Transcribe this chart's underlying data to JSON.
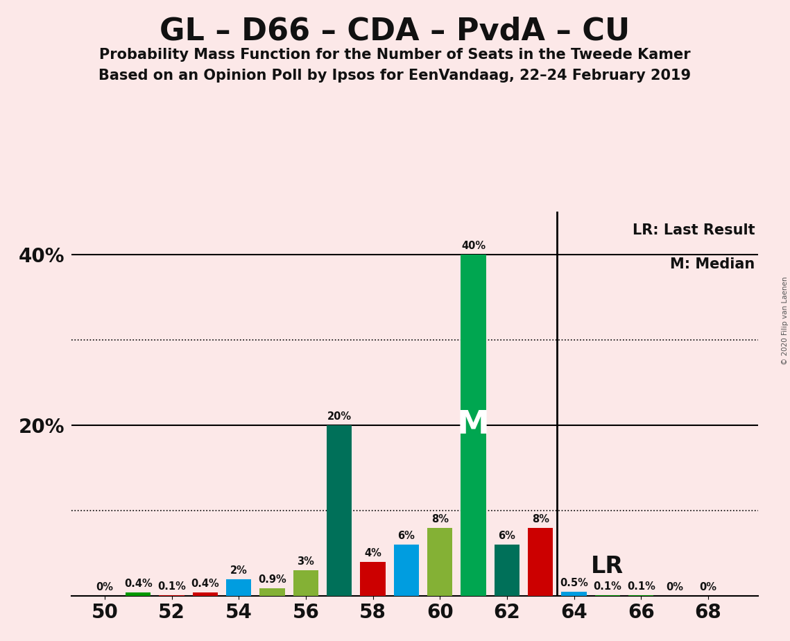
{
  "title": "GL – D66 – CDA – PvdA – CU",
  "subtitle1": "Probability Mass Function for the Number of Seats in the Tweede Kamer",
  "subtitle2": "Based on an Opinion Poll by Ipsos for EenVandaag, 22–24 February 2019",
  "copyright": "© 2020 Filip van Laenen",
  "background_color": "#fce8e8",
  "bars": [
    {
      "seat": 50,
      "value": 0.0,
      "color": "#008000",
      "label": "0%"
    },
    {
      "seat": 51,
      "value": 0.4,
      "color": "#009900",
      "label": "0.4%"
    },
    {
      "seat": 52,
      "value": 0.1,
      "color": "#cc0000",
      "label": "0.1%"
    },
    {
      "seat": 53,
      "value": 0.4,
      "color": "#cc0000",
      "label": "0.4%"
    },
    {
      "seat": 54,
      "value": 2.0,
      "color": "#009de0",
      "label": "2%"
    },
    {
      "seat": 55,
      "value": 0.9,
      "color": "#84b135",
      "label": "0.9%"
    },
    {
      "seat": 56,
      "value": 3.0,
      "color": "#84b135",
      "label": "3%"
    },
    {
      "seat": 57,
      "value": 20.0,
      "color": "#007059",
      "label": "20%"
    },
    {
      "seat": 58,
      "value": 4.0,
      "color": "#cc0000",
      "label": "4%"
    },
    {
      "seat": 59,
      "value": 6.0,
      "color": "#009de0",
      "label": "6%"
    },
    {
      "seat": 60,
      "value": 8.0,
      "color": "#84b135",
      "label": "8%"
    },
    {
      "seat": 61,
      "value": 40.0,
      "color": "#00a650",
      "label": "40%"
    },
    {
      "seat": 62,
      "value": 6.0,
      "color": "#007059",
      "label": "6%"
    },
    {
      "seat": 63,
      "value": 8.0,
      "color": "#cc0000",
      "label": "8%"
    },
    {
      "seat": 64,
      "value": 0.5,
      "color": "#009de0",
      "label": "0.5%"
    },
    {
      "seat": 65,
      "value": 0.1,
      "color": "#009900",
      "label": "0.1%"
    },
    {
      "seat": 66,
      "value": 0.1,
      "color": "#009900",
      "label": "0.1%"
    },
    {
      "seat": 67,
      "value": 0.0,
      "color": "#009900",
      "label": "0%"
    },
    {
      "seat": 68,
      "value": 0.0,
      "color": "#009900",
      "label": "0%"
    }
  ],
  "median_seat": 61,
  "median_label": "M",
  "lr_x": 63.5,
  "lr_label": "LR",
  "lr_legend": "LR: Last Result",
  "m_legend": "M: Median",
  "ylim": [
    0,
    45
  ],
  "solid_lines": [
    20,
    40
  ],
  "dotted_lines": [
    10,
    30
  ],
  "xtick_positions": [
    50,
    52,
    54,
    56,
    58,
    60,
    62,
    64,
    66,
    68
  ],
  "xlim": [
    49.0,
    69.5
  ]
}
